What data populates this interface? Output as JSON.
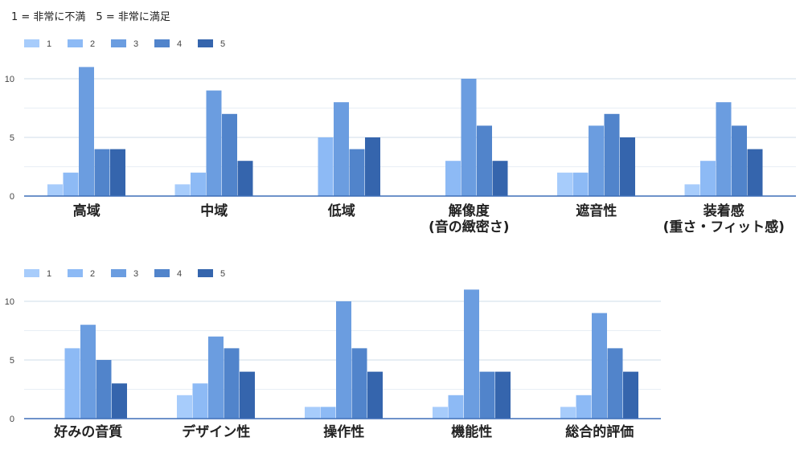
{
  "note": "1 = 非常に不満　5 = 非常に満足",
  "colors": [
    "#a7ccfb",
    "#8dbaf5",
    "#6b9de0",
    "#5184cb",
    "#3565ad"
  ],
  "chart_data": [
    {
      "type": "bar",
      "legend": [
        "1",
        "2",
        "3",
        "4",
        "5"
      ],
      "legend_position": "top-left",
      "yticks": [
        "0",
        "5",
        "10"
      ],
      "ylim": [
        0,
        12
      ],
      "grid": true,
      "categories": [
        [
          "高域"
        ],
        [
          "中域"
        ],
        [
          "低域"
        ],
        [
          "解像度",
          "(音の緻密さ)"
        ],
        [
          "遮音性"
        ],
        [
          "装着感",
          "(重さ・フィット感)"
        ]
      ],
      "series": [
        {
          "name": "1",
          "values": [
            1,
            1,
            0,
            0,
            2,
            1
          ]
        },
        {
          "name": "2",
          "values": [
            2,
            2,
            5,
            3,
            2,
            3
          ]
        },
        {
          "name": "3",
          "values": [
            11,
            9,
            8,
            10,
            6,
            8
          ]
        },
        {
          "name": "4",
          "values": [
            4,
            7,
            4,
            6,
            7,
            6
          ]
        },
        {
          "name": "5",
          "values": [
            4,
            3,
            5,
            3,
            5,
            4
          ]
        }
      ]
    },
    {
      "type": "bar",
      "legend": [
        "1",
        "2",
        "3",
        "4",
        "5"
      ],
      "legend_position": "top-left",
      "yticks": [
        "0",
        "5",
        "10"
      ],
      "ylim": [
        0,
        12
      ],
      "grid": true,
      "categories": [
        [
          "好みの音質"
        ],
        [
          "デザイン性"
        ],
        [
          "操作性"
        ],
        [
          "機能性"
        ],
        [
          "総合的評価"
        ]
      ],
      "series": [
        {
          "name": "1",
          "values": [
            0,
            2,
            1,
            1,
            1
          ]
        },
        {
          "name": "2",
          "values": [
            6,
            3,
            1,
            2,
            2
          ]
        },
        {
          "name": "3",
          "values": [
            8,
            7,
            10,
            11,
            9
          ]
        },
        {
          "name": "4",
          "values": [
            5,
            6,
            6,
            4,
            6
          ]
        },
        {
          "name": "5",
          "values": [
            3,
            4,
            4,
            4,
            4
          ]
        }
      ]
    }
  ]
}
